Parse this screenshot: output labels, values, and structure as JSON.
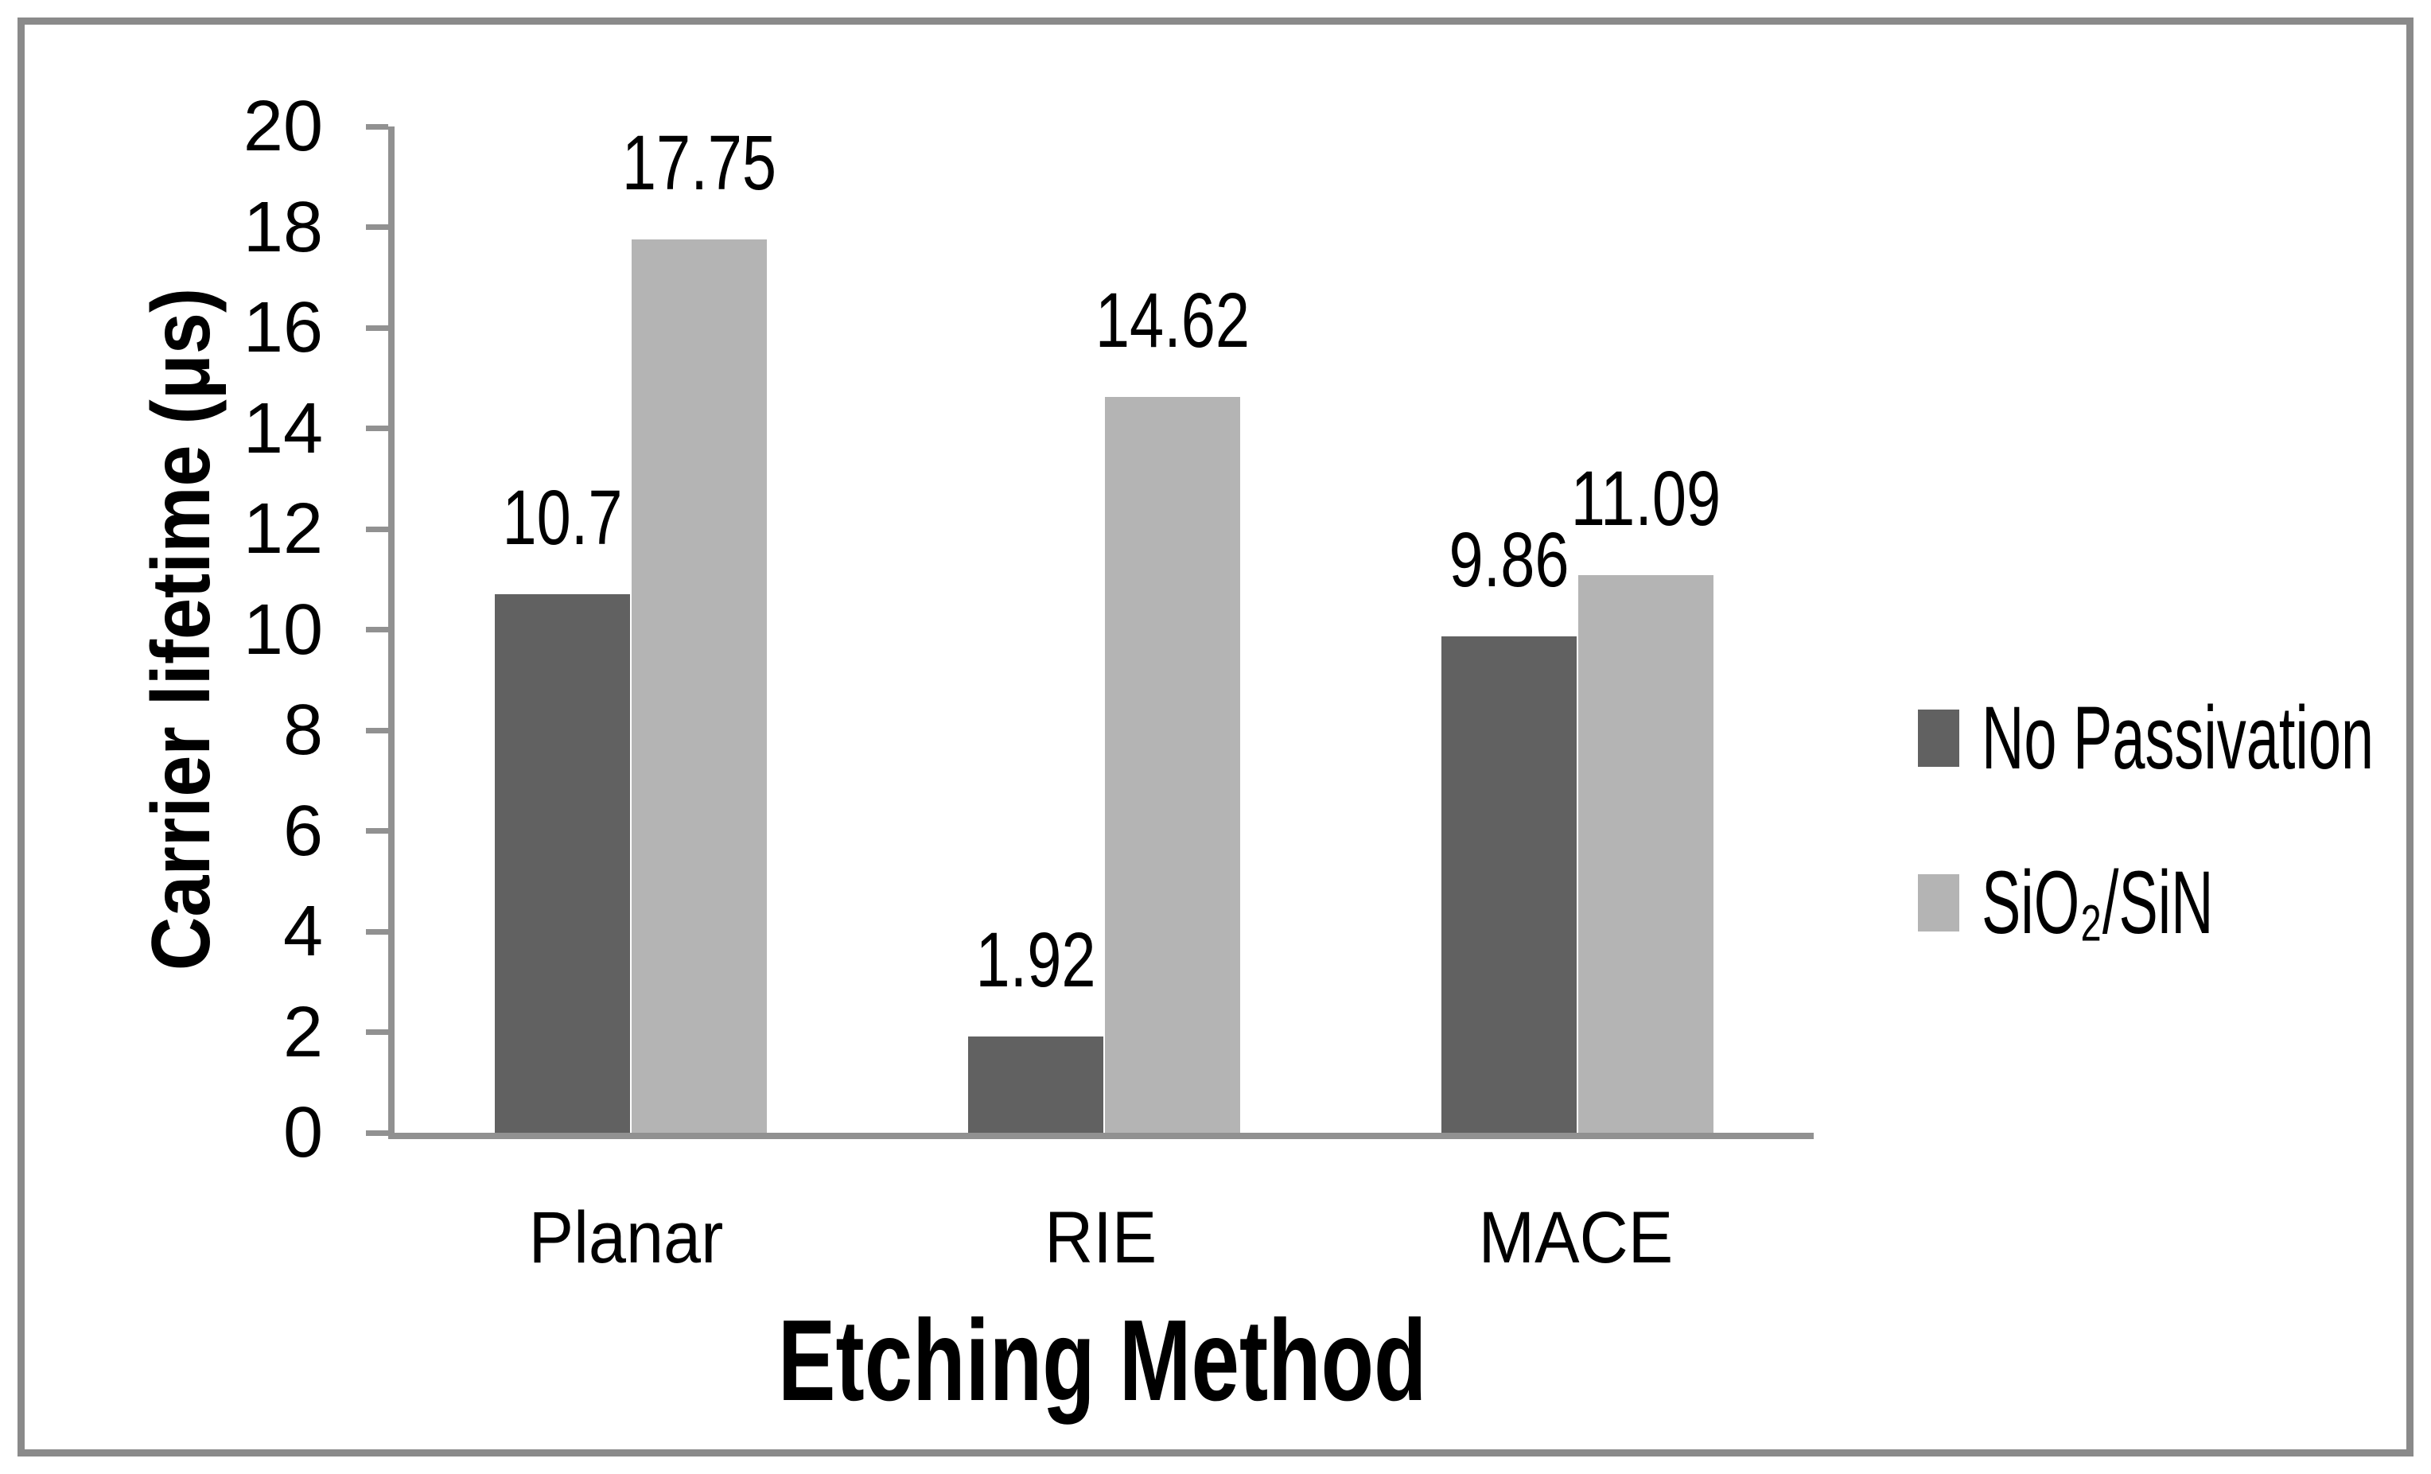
{
  "chart_data": {
    "type": "bar",
    "title": "",
    "categories": [
      "Planar",
      "RIE",
      "MACE"
    ],
    "series": [
      {
        "name": "No Passivation",
        "color": "#616161",
        "values": [
          10.7,
          1.92,
          9.86
        ],
        "value_labels": [
          "10.7",
          "1.92",
          "9.86"
        ]
      },
      {
        "name": "SiO₂/SiN",
        "color": "#b4b4b4",
        "values": [
          17.75,
          14.62,
          11.09
        ],
        "value_labels": [
          "17.75",
          "14.62",
          "11.09"
        ]
      }
    ],
    "xlabel": "Etching Method",
    "ylabel": "Carrier lifetime (μs)",
    "ylim": [
      0,
      20
    ],
    "ytick_step": 2,
    "yticks": [
      0,
      2,
      4,
      6,
      8,
      10,
      12,
      14,
      16,
      18,
      20
    ],
    "grid": "off",
    "legend_position": "right",
    "axis_color": "#919191",
    "frame_border_color": "#8a8a8a",
    "text_color": "#000000"
  }
}
